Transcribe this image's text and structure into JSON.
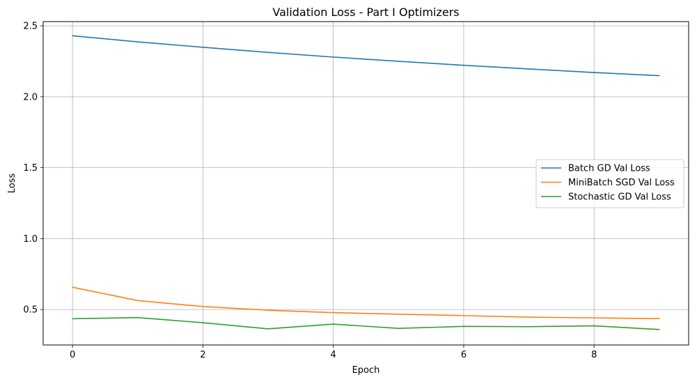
{
  "chart_data": {
    "type": "line",
    "title": "Validation Loss - Part I Optimizers",
    "xlabel": "Epoch",
    "ylabel": "Loss",
    "x": [
      0,
      1,
      2,
      3,
      4,
      5,
      6,
      7,
      8,
      9
    ],
    "xlim": [
      -0.45,
      9.45
    ],
    "ylim": [
      0.25,
      2.53
    ],
    "xticks": [
      0,
      2,
      4,
      6,
      8
    ],
    "xtick_labels": [
      "0",
      "2",
      "4",
      "6",
      "8"
    ],
    "yticks": [
      0.5,
      1.0,
      1.5,
      2.0,
      2.5
    ],
    "ytick_labels": [
      "0.5",
      "1.0",
      "1.5",
      "2.0",
      "2.5"
    ],
    "grid": true,
    "legend_position": "center-right",
    "series": [
      {
        "name": "Batch GD Val Loss",
        "color": "#1f77b4",
        "values": [
          2.43,
          2.387,
          2.349,
          2.313,
          2.28,
          2.25,
          2.222,
          2.196,
          2.171,
          2.149
        ]
      },
      {
        "name": "MiniBatch SGD Val Loss",
        "color": "#ff7f0e",
        "values": [
          0.657,
          0.563,
          0.521,
          0.495,
          0.478,
          0.467,
          0.457,
          0.446,
          0.441,
          0.436
        ]
      },
      {
        "name": "Stochastic GD Val Loss",
        "color": "#2ca02c",
        "values": [
          0.435,
          0.443,
          0.407,
          0.364,
          0.397,
          0.367,
          0.381,
          0.379,
          0.385,
          0.359
        ]
      }
    ]
  }
}
